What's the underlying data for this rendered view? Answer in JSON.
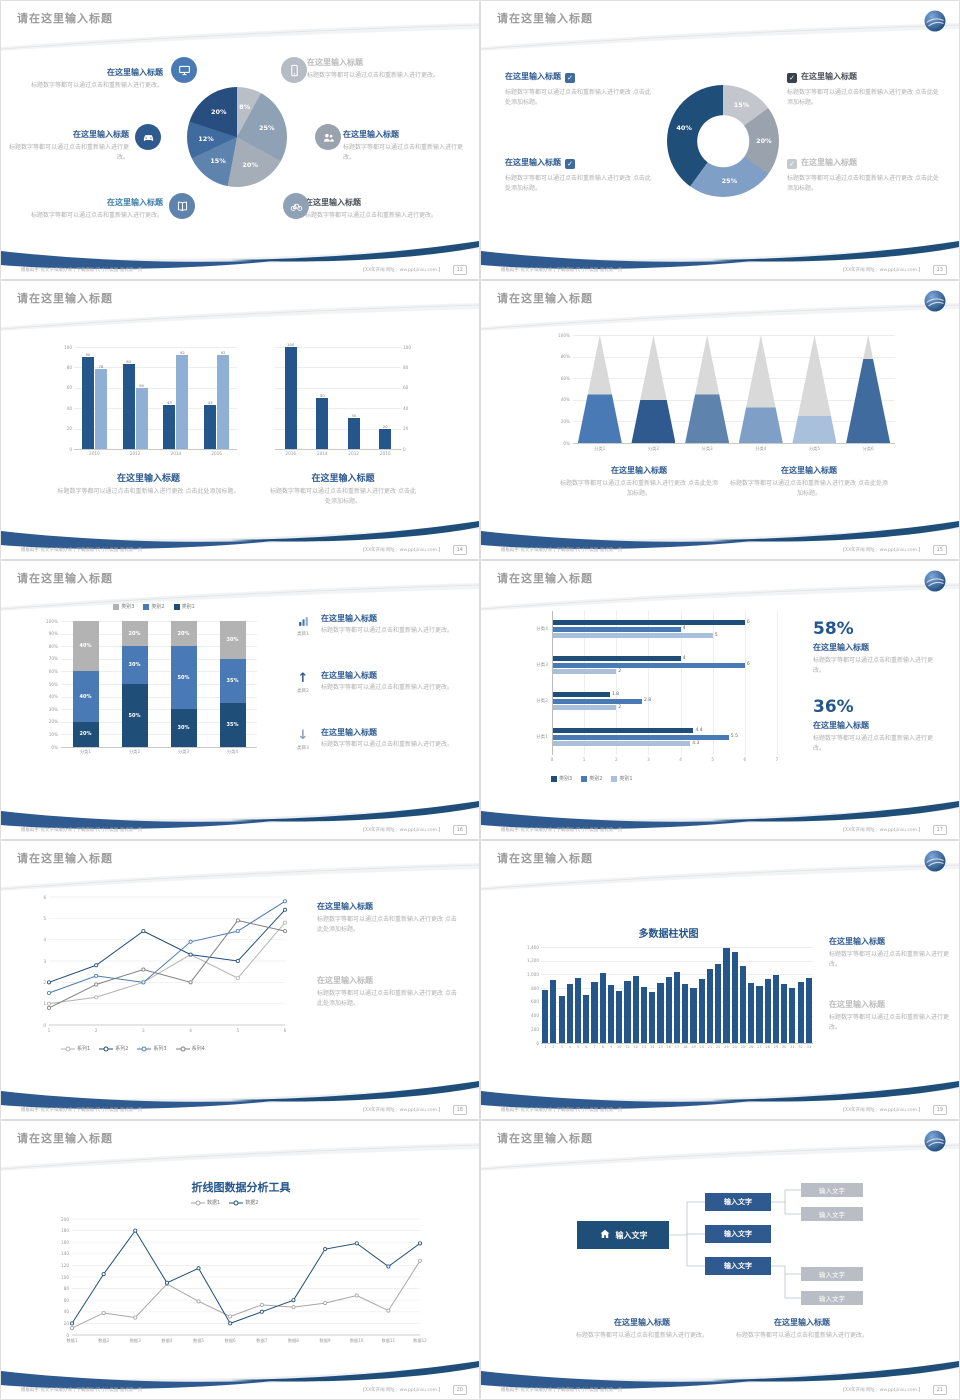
{
  "glyphs": {
    "check": "✓",
    "arrow_up": "↑",
    "arrow_down": "↓"
  },
  "footer": {
    "left_text": "模板助手:优文字排版办法 | 下载模板·尺寸片类图·版式第一页",
    "right_text": "【XX年开阔 网址：ww.pptjinsu.com 】"
  },
  "common": {
    "slide_title": "请在这里输入标题",
    "item_title": "在这里输入标题",
    "desc_short": "标题数字等都可以通过点击和重新输入进行更改。",
    "desc_long": "标题数字等都可以通过点击和重新输入进行更改 点击此处添加标题。"
  },
  "slides": [
    {
      "page": "12",
      "has_logo": false,
      "icons": [
        "monitor-icon",
        "car-icon",
        "book-icon",
        "phone-icon",
        "people-icon",
        "bike-icon"
      ],
      "chart_data": {
        "type": "pie",
        "values": [
          8,
          25,
          20,
          15,
          12,
          20
        ],
        "labels": [
          "8%",
          "25%",
          "20%",
          "15%",
          "12%",
          "20%"
        ],
        "colors": [
          "#b9bfc7",
          "#8fa1b5",
          "#a4adb8",
          "#5e83ad",
          "#3f6b9e",
          "#274e7f"
        ]
      }
    },
    {
      "page": "13",
      "has_logo": true,
      "chart_data": {
        "type": "donut",
        "values": [
          15,
          20,
          25,
          40
        ],
        "labels": [
          "15%",
          "20%",
          "25%",
          "40%"
        ],
        "colors": [
          "#c3c7cd",
          "#9aa3ad",
          "#7f9fc6",
          "#1f4e79"
        ]
      }
    },
    {
      "page": "14",
      "has_logo": false,
      "chart_data": [
        {
          "type": "bar",
          "categories": [
            "2010",
            "2012",
            "2014",
            "2016"
          ],
          "series": [
            {
              "name": "系列1",
              "color": "#24568c",
              "values": [
                90,
                83,
                43,
                43
              ]
            },
            {
              "name": "系列2",
              "color": "#8fafd4",
              "values": [
                78,
                60,
                92,
                92
              ]
            }
          ],
          "ylim": [
            0,
            100
          ],
          "yticks": [
            0,
            20,
            40,
            60,
            80,
            100
          ],
          "value_labels": true
        },
        {
          "type": "bar",
          "categories": [
            "2016",
            "2014",
            "2012",
            "2010"
          ],
          "series": [
            {
              "name": "系列1",
              "color": "#24568c",
              "values": [
                100,
                50,
                30,
                20
              ]
            }
          ],
          "ylim": [
            0,
            100
          ],
          "yticks": [
            0,
            20,
            40,
            60,
            80,
            100
          ],
          "value_labels": true,
          "right_axis": true,
          "left_labels": false,
          "ml": 6,
          "mr": 16
        }
      ]
    },
    {
      "page": "15",
      "has_logo": true,
      "chart_data": {
        "type": "pyramid",
        "categories": [
          "分类1",
          "分类2",
          "分类3",
          "分类4",
          "分类5",
          "分类6"
        ],
        "values_pct": [
          45,
          40,
          45,
          33,
          25,
          78
        ],
        "colors": [
          "#4a7ab5",
          "#2e5a8f",
          "#5e83ad",
          "#7f9fc6",
          "#a9c0dc",
          "#3f6b9e"
        ],
        "gray": "#d9d9d9",
        "yticks": [
          "0%",
          "20%",
          "40%",
          "60%",
          "80%",
          "100%"
        ]
      }
    },
    {
      "page": "16",
      "has_logo": false,
      "items": [
        {
          "caption": "类目1"
        },
        {
          "caption": "类目2"
        },
        {
          "caption": "类目3"
        }
      ],
      "chart_data": {
        "type": "stacked_bar",
        "categories": [
          "分类1",
          "分类2",
          "分类3",
          "分类4"
        ],
        "series": [
          {
            "name": "类别1",
            "color": "#1f4e79",
            "values": [
              20,
              50,
              30,
              35
            ]
          },
          {
            "name": "类别2",
            "color": "#4a7ab5",
            "values": [
              40,
              30,
              50,
              35
            ]
          },
          {
            "name": "类别3",
            "color": "#b3b3b3",
            "values": [
              40,
              20,
              20,
              30
            ]
          }
        ],
        "yticks": [
          "0%",
          "10%",
          "20%",
          "30%",
          "40%",
          "50%",
          "60%",
          "70%",
          "80%",
          "90%",
          "100%"
        ],
        "legend_items": [
          {
            "label": "类别3",
            "color": "#b3b3b3"
          },
          {
            "label": "类别2",
            "color": "#4a7ab5"
          },
          {
            "label": "类别1",
            "color": "#1f4e79"
          }
        ]
      }
    },
    {
      "page": "17",
      "has_logo": true,
      "stats": [
        {
          "pct": "58%"
        },
        {
          "pct": "36%"
        }
      ],
      "chart_data": {
        "type": "hbar",
        "categories": [
          "分类4",
          "分类3",
          "分类2",
          "分类1"
        ],
        "series": [
          {
            "name": "类别3",
            "color": "#1f4e79",
            "values": [
              6,
              4,
              1.8,
              4.4
            ]
          },
          {
            "name": "类别2",
            "color": "#4a7ab5",
            "values": [
              4,
              6,
              2.8,
              5.5
            ]
          },
          {
            "name": "类别1",
            "color": "#a9c0dc",
            "values": [
              5,
              2,
              2,
              4.3
            ]
          }
        ],
        "xticks": [
          0,
          1,
          2,
          3,
          4,
          5,
          6,
          7
        ],
        "legend_items": [
          {
            "label": "类别3",
            "color": "#1f4e79"
          },
          {
            "label": "类别2",
            "color": "#4a7ab5"
          },
          {
            "label": "类别1",
            "color": "#a9c0dc"
          }
        ]
      }
    },
    {
      "page": "18",
      "has_logo": false,
      "chart_data": {
        "type": "line",
        "x": [
          "1",
          "2",
          "3",
          "4",
          "5",
          "6"
        ],
        "ylim": [
          0,
          6
        ],
        "yticks": [
          0,
          1,
          2,
          3,
          4,
          5,
          6
        ],
        "series": [
          {
            "name": "系列1",
            "color": "#b3b3b3",
            "values": [
              1,
              1.3,
              2,
              3.3,
              2.2,
              4.8
            ]
          },
          {
            "name": "系列2",
            "color": "#1f4e79",
            "values": [
              2,
              2.8,
              4.4,
              3.3,
              3,
              5.4
            ]
          },
          {
            "name": "系列3",
            "color": "#4a7ab5",
            "values": [
              1.5,
              2.3,
              2,
              3.9,
              4.4,
              5.8
            ]
          },
          {
            "name": "系列4",
            "color": "#7f7f7f",
            "values": [
              0.8,
              1.9,
              2.6,
              2,
              4.9,
              4.4
            ]
          }
        ],
        "legend_items": [
          {
            "label": "系列1",
            "color": "#b3b3b3"
          },
          {
            "label": "系列2",
            "color": "#1f4e79"
          },
          {
            "label": "系列3",
            "color": "#4a7ab5"
          },
          {
            "label": "系列4",
            "color": "#7f7f7f"
          }
        ],
        "ml": 10
      }
    },
    {
      "page": "19",
      "has_logo": true,
      "chart_data": {
        "type": "bar",
        "title": "多数据柱状图",
        "categories": [
          "1",
          "2",
          "3",
          "4",
          "5",
          "6",
          "7",
          "8",
          "9",
          "10",
          "11",
          "12",
          "13",
          "14",
          "15",
          "16",
          "17",
          "18",
          "19",
          "20",
          "21",
          "22",
          "23",
          "24",
          "25",
          "26",
          "27",
          "28",
          "29",
          "30",
          "31",
          "32",
          "33"
        ],
        "series": [
          {
            "name": "数据",
            "color": "#24568c",
            "values": [
              780,
              920,
              680,
              860,
              950,
              700,
              890,
              1020,
              840,
              760,
              900,
              980,
              820,
              740,
              880,
              960,
              1040,
              860,
              800,
              940,
              1080,
              1150,
              1390,
              1320,
              1120,
              880,
              830,
              930,
              990,
              860,
              800,
              890,
              950
            ]
          }
        ],
        "ylim": [
          0,
          1400
        ],
        "yticks": [
          "0",
          "200",
          "400",
          "600",
          "800",
          "1,000",
          "1,200",
          "1,400"
        ],
        "ml": 24,
        "x_small": true
      }
    },
    {
      "page": "20",
      "has_logo": false,
      "chart_data": {
        "type": "line",
        "title": "折线图数据分析工具",
        "x": [
          "数据1",
          "数据2",
          "数据3",
          "数据4",
          "数据5",
          "数据6",
          "数据7",
          "数据8",
          "数据9",
          "数据10",
          "数据11",
          "数据12"
        ],
        "ylim": [
          0,
          200
        ],
        "yticks": [
          0,
          20,
          40,
          60,
          80,
          100,
          120,
          140,
          160,
          180,
          200
        ],
        "series": [
          {
            "name": "数据1",
            "color": "#a6a6a6",
            "values": [
              12,
              38,
              30,
              88,
              58,
              32,
              52,
              48,
              55,
              68,
              42,
              128
            ]
          },
          {
            "name": "数据2",
            "color": "#1f4e79",
            "values": [
              20,
              105,
              180,
              90,
              115,
              20,
              40,
              60,
              148,
              158,
              118,
              158
            ]
          }
        ],
        "legend_items": [
          {
            "label": "数据1",
            "color": "#a6a6a6"
          },
          {
            "label": "数据2",
            "color": "#1f4e79"
          }
        ],
        "ml": 16
      }
    },
    {
      "page": "21",
      "has_logo": true,
      "diagram": {
        "root": "输入文字",
        "mid": [
          "输入文字",
          "输入文字",
          "输入文字"
        ],
        "leaf": [
          "输入文字",
          "输入文字",
          "输入文字",
          "输入文字"
        ]
      }
    }
  ]
}
